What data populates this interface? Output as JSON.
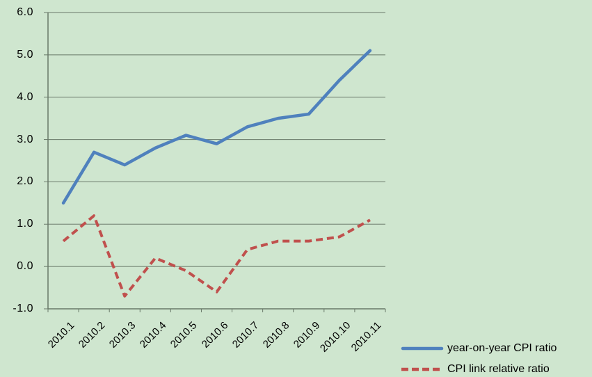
{
  "chart_data": {
    "type": "line",
    "title": "",
    "categories": [
      "2010.1",
      "2010.2",
      "2010.3",
      "2010.4",
      "2010.5",
      "2010.6",
      "2010.7",
      "2010.8",
      "2010.9",
      "2010.10",
      "2010.11"
    ],
    "series": [
      {
        "name": "year-on-year CPI ratio",
        "values": [
          1.5,
          2.7,
          2.4,
          2.8,
          3.1,
          2.9,
          3.3,
          3.5,
          3.6,
          4.4,
          5.1
        ],
        "color": "#4f81bd",
        "line_style": "solid"
      },
      {
        "name": "CPI link relative ratio",
        "values": [
          0.6,
          1.2,
          -0.7,
          0.2,
          -0.1,
          -0.6,
          0.4,
          0.6,
          0.6,
          0.7,
          1.1
        ],
        "color": "#c0504d",
        "line_style": "dashed"
      }
    ],
    "xlabel": "",
    "ylabel": "",
    "ylim": [
      -1.0,
      6.0
    ],
    "ytick_step": 1.0,
    "ytick_labels": [
      "6.0",
      "5.0",
      "4.0",
      "3.0",
      "2.0",
      "1.0",
      "0.0",
      "-1.0"
    ],
    "x_label_rotation_deg": 45,
    "grid": true,
    "legend_position": "bottom-right",
    "colors": {
      "background": "#cfe6cf",
      "gridline": "#687868",
      "axis": "#687868",
      "text": "#000000"
    }
  }
}
